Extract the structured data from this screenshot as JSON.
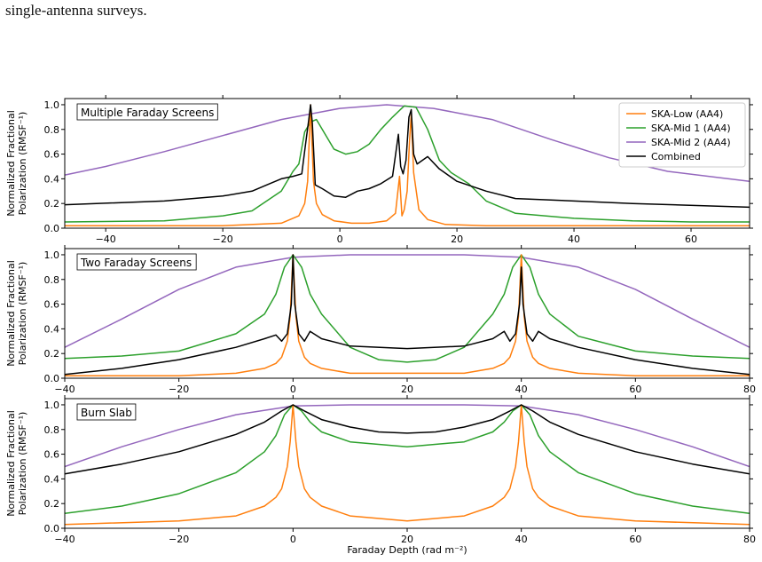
{
  "caption": "single-antenna surveys.",
  "colors": {
    "ska_low": "#ff7f0e",
    "ska_mid1": "#2ca02c",
    "ska_mid2": "#9467bd",
    "combined": "#000000"
  },
  "shared_ylabel": [
    "Normalized Fractional",
    "Polarization (RMSF⁻¹)"
  ],
  "shared_xlabel": "Faraday Depth (rad m⁻²)",
  "legend": {
    "placement": "top-right of first panel",
    "entries": [
      "SKA-Low (AA4)",
      "SKA-Mid 1 (AA4)",
      "SKA-Mid 2 (AA4)",
      "Combined"
    ]
  },
  "chart_data": [
    {
      "type": "line",
      "title": "Multiple Faraday Screens",
      "xlim": [
        -47,
        70
      ],
      "ylim": [
        0,
        1.05
      ],
      "xticks": [
        -40,
        -20,
        0,
        20,
        40,
        60
      ],
      "xtick_labels": [
        "−40",
        "−20",
        "0",
        "20",
        "40",
        "60"
      ],
      "yticks": [
        0.0,
        0.2,
        0.4,
        0.6,
        0.8,
        1.0
      ],
      "ytick_labels": [
        "0.0",
        "0.2",
        "0.4",
        "0.6",
        "0.8",
        "1.0"
      ],
      "grid": false,
      "series": [
        {
          "name": "SKA-Low (AA4)",
          "x": [
            -47,
            -20,
            -10,
            -7,
            -6,
            -5.5,
            -5,
            -4.5,
            -4,
            -3,
            -1,
            2,
            5,
            8,
            9.5,
            10.2,
            10.6,
            11,
            11.5,
            11.9,
            12.2,
            12.6,
            13.5,
            15,
            18,
            25,
            35,
            50,
            70
          ],
          "y": [
            0.02,
            0.02,
            0.04,
            0.1,
            0.2,
            0.38,
            1.0,
            0.38,
            0.2,
            0.11,
            0.06,
            0.04,
            0.04,
            0.06,
            0.12,
            0.42,
            0.1,
            0.15,
            0.3,
            0.7,
            0.92,
            0.45,
            0.15,
            0.07,
            0.03,
            0.02,
            0.02,
            0.02,
            0.02
          ]
        },
        {
          "name": "SKA-Mid 1 (AA4)",
          "x": [
            -47,
            -30,
            -20,
            -15,
            -10,
            -8,
            -7,
            -6,
            -5,
            -4,
            -3,
            -1,
            1,
            3,
            5,
            7,
            9,
            11,
            13,
            15,
            17,
            19,
            22,
            25,
            30,
            40,
            50,
            60,
            70
          ],
          "y": [
            0.05,
            0.06,
            0.1,
            0.14,
            0.3,
            0.46,
            0.52,
            0.78,
            0.86,
            0.88,
            0.8,
            0.64,
            0.6,
            0.62,
            0.68,
            0.8,
            0.9,
            0.99,
            0.98,
            0.8,
            0.55,
            0.45,
            0.36,
            0.22,
            0.12,
            0.08,
            0.06,
            0.05,
            0.05
          ]
        },
        {
          "name": "SKA-Mid 2 (AA4)",
          "x": [
            -47,
            -40,
            -30,
            -20,
            -10,
            0,
            8,
            16,
            26,
            36,
            46,
            56,
            70
          ],
          "y": [
            0.43,
            0.5,
            0.62,
            0.75,
            0.88,
            0.97,
            1.0,
            0.97,
            0.88,
            0.72,
            0.57,
            0.46,
            0.38
          ]
        },
        {
          "name": "Combined",
          "x": [
            -47,
            -30,
            -20,
            -15,
            -12,
            -10,
            -8,
            -6.5,
            -5.8,
            -5.3,
            -5,
            -4.7,
            -4.2,
            -3,
            -1,
            1,
            3,
            5,
            7,
            9,
            10,
            10.4,
            10.8,
            11.3,
            11.8,
            12.2,
            12.6,
            13.2,
            15,
            17,
            20,
            25,
            30,
            40,
            50,
            70
          ],
          "y": [
            0.19,
            0.22,
            0.26,
            0.3,
            0.36,
            0.4,
            0.42,
            0.44,
            0.7,
            0.88,
            1.0,
            0.85,
            0.35,
            0.32,
            0.26,
            0.25,
            0.3,
            0.32,
            0.36,
            0.42,
            0.76,
            0.5,
            0.44,
            0.55,
            0.9,
            0.96,
            0.6,
            0.52,
            0.58,
            0.48,
            0.38,
            0.3,
            0.24,
            0.22,
            0.2,
            0.17
          ]
        }
      ]
    },
    {
      "type": "line",
      "title": "Two Faraday Screens",
      "xlim": [
        -40,
        80
      ],
      "ylim": [
        0,
        1.05
      ],
      "xticks": [
        -40,
        -20,
        0,
        20,
        40,
        60,
        80
      ],
      "xtick_labels": [
        "−40",
        "−20",
        "0",
        "20",
        "40",
        "60",
        "80"
      ],
      "yticks": [
        0.0,
        0.2,
        0.4,
        0.6,
        0.8,
        1.0
      ],
      "ytick_labels": [
        "0.0",
        "0.2",
        "0.4",
        "0.6",
        "0.8",
        "1.0"
      ],
      "grid": false,
      "series": [
        {
          "name": "SKA-Low (AA4)",
          "x": [
            -40,
            -20,
            -10,
            -5,
            -3,
            -2,
            -1,
            -0.5,
            0,
            0.5,
            1,
            2,
            3,
            5,
            10,
            20,
            30,
            35,
            37,
            38,
            39,
            39.5,
            40,
            40.5,
            41,
            42,
            43,
            45,
            50,
            60,
            80
          ],
          "y": [
            0.02,
            0.02,
            0.04,
            0.08,
            0.12,
            0.17,
            0.3,
            0.5,
            1.0,
            0.5,
            0.3,
            0.17,
            0.12,
            0.08,
            0.04,
            0.04,
            0.04,
            0.08,
            0.12,
            0.17,
            0.3,
            0.5,
            1.0,
            0.5,
            0.3,
            0.17,
            0.12,
            0.08,
            0.04,
            0.02,
            0.02
          ]
        },
        {
          "name": "SKA-Mid 1 (AA4)",
          "x": [
            -40,
            -30,
            -20,
            -10,
            -5,
            -3,
            -1.5,
            0,
            1.5,
            3,
            5,
            10,
            15,
            20,
            25,
            30,
            35,
            37,
            38.5,
            40,
            41.5,
            43,
            45,
            50,
            60,
            70,
            80
          ],
          "y": [
            0.16,
            0.18,
            0.22,
            0.36,
            0.52,
            0.68,
            0.9,
            1.0,
            0.9,
            0.68,
            0.52,
            0.25,
            0.15,
            0.13,
            0.15,
            0.25,
            0.52,
            0.68,
            0.9,
            1.0,
            0.9,
            0.68,
            0.52,
            0.34,
            0.22,
            0.18,
            0.16
          ]
        },
        {
          "name": "SKA-Mid 2 (AA4)",
          "x": [
            -40,
            -30,
            -20,
            -10,
            0,
            10,
            20,
            30,
            40,
            50,
            60,
            70,
            80
          ],
          "y": [
            0.25,
            0.48,
            0.72,
            0.9,
            0.98,
            1.0,
            1.0,
            1.0,
            0.98,
            0.9,
            0.72,
            0.48,
            0.25
          ]
        },
        {
          "name": "Combined",
          "x": [
            -40,
            -30,
            -20,
            -10,
            -5,
            -3,
            -2,
            -1,
            -0.3,
            0,
            0.3,
            1,
            2,
            3,
            5,
            10,
            20,
            30,
            35,
            37,
            38,
            39,
            39.7,
            40,
            40.3,
            41,
            42,
            43,
            45,
            50,
            60,
            70,
            80
          ],
          "y": [
            0.03,
            0.08,
            0.15,
            0.25,
            0.32,
            0.35,
            0.3,
            0.36,
            0.6,
            1.0,
            0.6,
            0.36,
            0.3,
            0.38,
            0.32,
            0.26,
            0.24,
            0.26,
            0.32,
            0.38,
            0.3,
            0.36,
            0.6,
            0.9,
            0.6,
            0.36,
            0.3,
            0.38,
            0.32,
            0.25,
            0.15,
            0.08,
            0.03
          ]
        }
      ]
    },
    {
      "type": "line",
      "title": "Burn Slab",
      "xlim": [
        -40,
        80
      ],
      "ylim": [
        0,
        1.05
      ],
      "xticks": [
        -40,
        -20,
        0,
        20,
        40,
        60,
        80
      ],
      "xtick_labels": [
        "−40",
        "−20",
        "0",
        "20",
        "40",
        "60",
        "80"
      ],
      "yticks": [
        0.0,
        0.2,
        0.4,
        0.6,
        0.8,
        1.0
      ],
      "ytick_labels": [
        "0.0",
        "0.2",
        "0.4",
        "0.6",
        "0.8",
        "1.0"
      ],
      "xlabel": "Faraday Depth (rad m⁻²)",
      "grid": false,
      "series": [
        {
          "name": "SKA-Low (AA4)",
          "x": [
            -40,
            -20,
            -10,
            -5,
            -3,
            -2,
            -1,
            -0.5,
            0,
            0.5,
            1,
            2,
            3,
            5,
            10,
            20,
            30,
            35,
            37,
            38,
            39,
            39.5,
            40,
            40.5,
            41,
            42,
            43,
            45,
            50,
            60,
            80
          ],
          "y": [
            0.03,
            0.06,
            0.1,
            0.18,
            0.25,
            0.32,
            0.5,
            0.7,
            1.0,
            0.7,
            0.5,
            0.32,
            0.25,
            0.18,
            0.1,
            0.06,
            0.1,
            0.18,
            0.25,
            0.32,
            0.5,
            0.7,
            1.0,
            0.7,
            0.5,
            0.32,
            0.25,
            0.18,
            0.1,
            0.06,
            0.03
          ]
        },
        {
          "name": "SKA-Mid 1 (AA4)",
          "x": [
            -40,
            -30,
            -20,
            -10,
            -5,
            -3,
            -1.5,
            0,
            1.5,
            3,
            5,
            10,
            20,
            30,
            35,
            37,
            38.5,
            40,
            41.5,
            43,
            45,
            50,
            60,
            70,
            80
          ],
          "y": [
            0.12,
            0.18,
            0.28,
            0.45,
            0.62,
            0.75,
            0.92,
            1.0,
            0.95,
            0.86,
            0.78,
            0.7,
            0.66,
            0.7,
            0.78,
            0.86,
            0.95,
            1.0,
            0.92,
            0.75,
            0.62,
            0.45,
            0.28,
            0.18,
            0.12
          ]
        },
        {
          "name": "SKA-Mid 2 (AA4)",
          "x": [
            -40,
            -30,
            -20,
            -10,
            0,
            10,
            20,
            30,
            40,
            50,
            60,
            70,
            80
          ],
          "y": [
            0.5,
            0.66,
            0.8,
            0.92,
            0.99,
            1.0,
            1.0,
            1.0,
            0.99,
            0.92,
            0.8,
            0.66,
            0.5
          ]
        },
        {
          "name": "Combined",
          "x": [
            -40,
            -30,
            -20,
            -10,
            -5,
            -2,
            0,
            2,
            5,
            10,
            15,
            20,
            25,
            30,
            35,
            38,
            40,
            42,
            45,
            50,
            60,
            70,
            80
          ],
          "y": [
            0.44,
            0.52,
            0.62,
            0.76,
            0.86,
            0.95,
            1.0,
            0.95,
            0.88,
            0.82,
            0.78,
            0.77,
            0.78,
            0.82,
            0.88,
            0.95,
            1.0,
            0.95,
            0.86,
            0.76,
            0.62,
            0.52,
            0.44
          ]
        }
      ]
    }
  ]
}
